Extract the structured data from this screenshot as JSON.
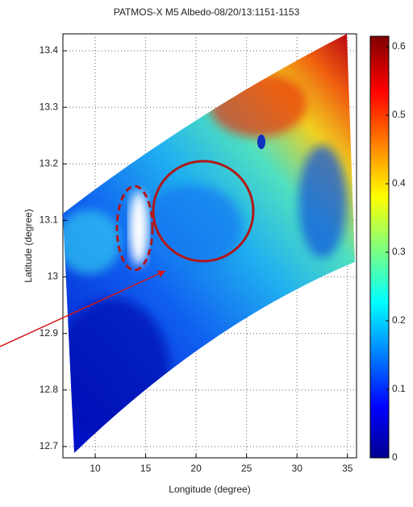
{
  "chart_data": {
    "type": "image",
    "title": "PATMOS-X M5 Albedo-08/20/13:1151-1153",
    "xlabel": "Longitude (degree)",
    "ylabel": "Latitude (degree)",
    "xlim": [
      6.8,
      35.9
    ],
    "xticks": [
      10,
      15,
      20,
      25,
      30,
      35
    ],
    "ylim": [
      12.68,
      13.43
    ],
    "yticks": [
      12.7,
      12.8,
      12.9,
      13,
      13.1,
      13.2,
      13.3,
      13.4
    ],
    "grid": true,
    "colorbar": {
      "clim": [
        0,
        0.6
      ],
      "ticks": [
        0,
        0.1,
        0.2,
        0.3,
        0.4,
        0.5,
        0.6
      ]
    }
  }
}
